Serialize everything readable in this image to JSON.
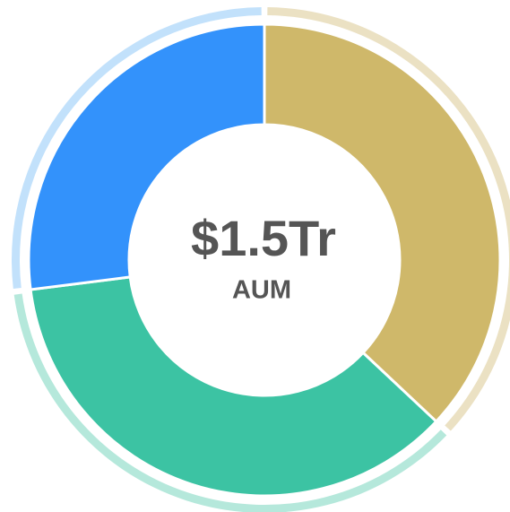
{
  "chart_data": {
    "type": "pie",
    "title": "$1.5Tr",
    "subtitle": "AUM",
    "values": [
      37,
      36,
      27
    ],
    "colors": [
      "#cfb86a",
      "#3cc3a3",
      "#3392fb"
    ],
    "ring_colors": [
      "#ebe1c3",
      "#b5e8db",
      "#c2e1fb"
    ]
  }
}
